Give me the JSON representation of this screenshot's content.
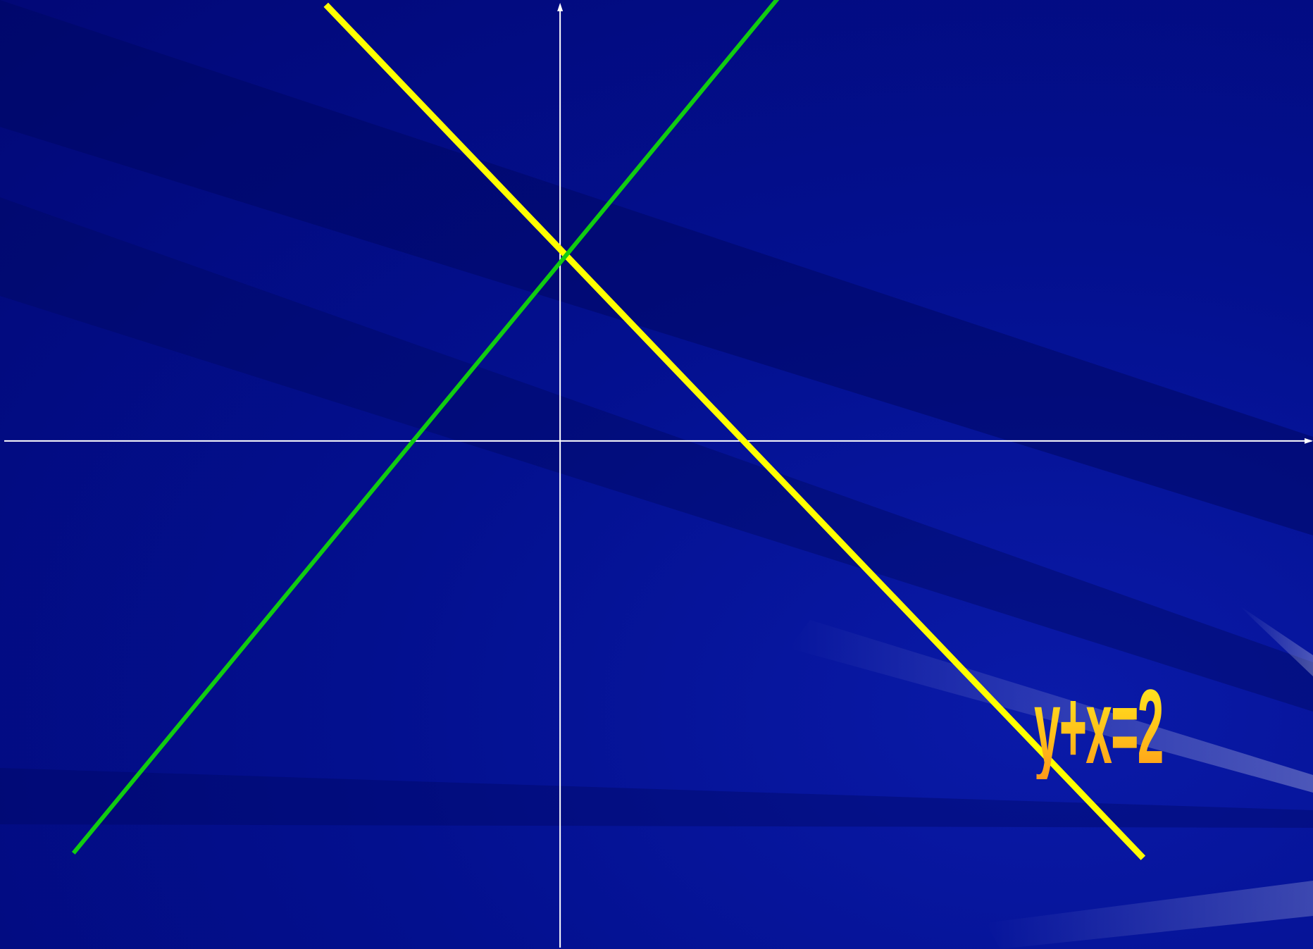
{
  "equation_label": "y+x=2",
  "colors": {
    "background": "#020a8a",
    "axes": "#ffffff",
    "yellow_line": "#ffff00",
    "green_line": "#11cc11",
    "label_top": "#ffee22",
    "label_bottom": "#ff9a1a"
  },
  "chart_data": {
    "type": "line",
    "title": "",
    "xlabel": "",
    "ylabel": "",
    "xlim": [
      -6.1,
      8.2
    ],
    "ylim": [
      -5.3,
      4.6
    ],
    "grid": false,
    "axes_arrows": true,
    "series": [
      {
        "name": "y+x=2",
        "color": "#ffff00",
        "x": [
          -2.55,
          6.35
        ],
        "y": [
          4.55,
          -4.35
        ]
      },
      {
        "color": "#11cc11",
        "x": [
          -5.3,
          2.4
        ],
        "y": [
          -4.3,
          4.65
        ]
      }
    ]
  }
}
